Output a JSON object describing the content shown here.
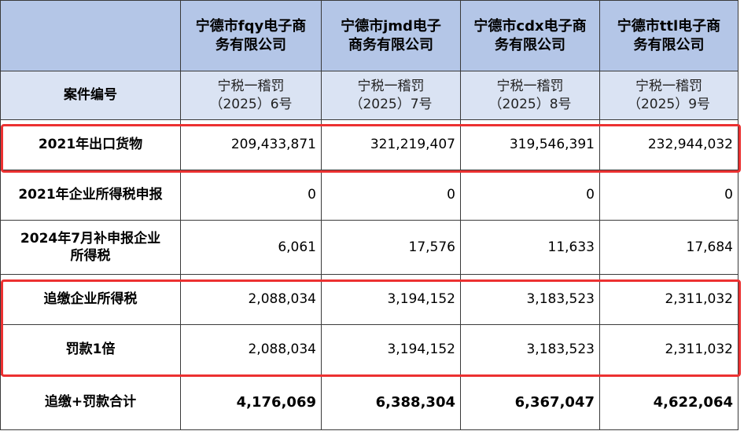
{
  "header": {
    "corner": "",
    "companies": [
      {
        "line1": "宁德市fqy电子商",
        "line2": "务有限公司"
      },
      {
        "line1": "宁德市jmd电子",
        "line2": "商务有限公司"
      },
      {
        "line1": "宁德市cdx电子商",
        "line2": "务有限公司"
      },
      {
        "line1": "宁德市ttl电子商",
        "line2": "务有限公司"
      }
    ]
  },
  "rows": {
    "case": {
      "label": "案件编号",
      "values": [
        {
          "line1": "宁税一稽罚",
          "line2": "（2025）6号"
        },
        {
          "line1": "宁税一稽罚",
          "line2": "（2025）7号"
        },
        {
          "line1": "宁税一稽罚",
          "line2": "（2025）8号"
        },
        {
          "line1": "宁税一稽罚",
          "line2": "（2025）9号"
        }
      ]
    },
    "export_2021": {
      "label": "2021年出口货物",
      "values": [
        "209,433,871",
        "321,219,407",
        "319,546,391",
        "232,944,032"
      ]
    },
    "cit_2021": {
      "label": "2021年企业所得税申报",
      "values": [
        "0",
        "0",
        "0",
        "0"
      ]
    },
    "supplement_2024": {
      "label_line1": "2024年7月补申报企业",
      "label_line2": "所得税",
      "values": [
        "6,061",
        "17,576",
        "11,633",
        "17,684"
      ]
    },
    "back_tax": {
      "label": "追缴企业所得税",
      "values": [
        "2,088,034",
        "3,194,152",
        "3,183,523",
        "2,311,032"
      ]
    },
    "penalty": {
      "label": "罚款1倍",
      "values": [
        "2,088,034",
        "3,194,152",
        "3,183,523",
        "2,311,032"
      ]
    },
    "total": {
      "label": "追缴+罚款合计",
      "values": [
        "4,176,069",
        "6,388,304",
        "6,367,047",
        "4,622,064"
      ]
    }
  },
  "colors": {
    "header_bg": "#b4c6e7",
    "case_row_bg": "#dae3f3",
    "highlight_border": "#ec3131",
    "grid_line": "#3a3a3a"
  }
}
